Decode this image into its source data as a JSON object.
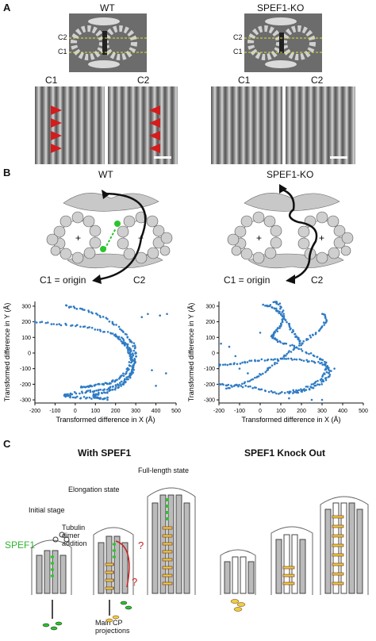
{
  "panels": {
    "A": {
      "letter": "A",
      "wt_title": "WT",
      "ko_title": "SPEF1-KO",
      "c1": "C1",
      "c2": "C2"
    },
    "B": {
      "letter": "B",
      "wt_title": "WT",
      "ko_title": "SPEF1-KO",
      "origin": "C1 = origin",
      "c2": "C2",
      "plus": "+"
    },
    "C": {
      "letter": "C",
      "with_title": "With SPEF1",
      "ko_title": "SPEF1 Knock Out",
      "full_length": "Full-length state",
      "elongation": "Elongation state",
      "initial": "Initial stage",
      "tubulin_1": "Tubulin",
      "tubulin_2": "dimer",
      "tubulin_3": "addition",
      "spef1": "SPEF1",
      "main_cp_1": "Main CP",
      "main_cp_2": "projections",
      "question": "?"
    }
  },
  "chart_data": [
    {
      "type": "scatter",
      "name_hint": "WT",
      "xlabel": "Transformed difference in X (Å)",
      "ylabel": "Transformed difference in Y (Å)",
      "xlim": [
        -200,
        500
      ],
      "ylim": [
        -320,
        330
      ],
      "xticks": [
        -200,
        -100,
        0,
        100,
        200,
        300,
        400,
        500
      ],
      "yticks": [
        -300,
        -200,
        -100,
        0,
        100,
        200,
        300
      ],
      "color": "#2e7bc4",
      "curves": [
        {
          "x": [
            -200,
            -120,
            -40,
            40,
            110,
            170,
            220,
            255,
            275,
            285,
            290,
            285,
            270,
            240,
            200,
            160,
            120,
            100,
            90,
            100,
            130,
            170
          ],
          "y": [
            200,
            190,
            180,
            170,
            150,
            130,
            100,
            60,
            20,
            -20,
            -70,
            -120,
            -160,
            -200,
            -230,
            -250,
            -260,
            -265,
            -270,
            -280,
            -290,
            -285
          ]
        },
        {
          "x": [
            -50,
            0,
            60,
            120,
            180,
            230,
            265,
            290,
            300,
            300,
            290,
            270,
            240,
            200,
            160,
            120,
            80,
            40,
            -20,
            -60,
            -30,
            20,
            80,
            140
          ],
          "y": [
            300,
            290,
            270,
            240,
            200,
            150,
            100,
            50,
            0,
            -50,
            -100,
            -140,
            -180,
            -210,
            -230,
            -240,
            -245,
            -250,
            -260,
            -270,
            -280,
            -285,
            -290,
            -290
          ]
        },
        {
          "x": [
            200,
            230,
            255,
            270,
            275,
            270,
            255,
            230,
            200,
            170,
            140,
            110,
            80,
            50,
            20
          ],
          "y": [
            120,
            80,
            40,
            0,
            -40,
            -80,
            -120,
            -150,
            -175,
            -190,
            -200,
            -205,
            -210,
            -215,
            -220
          ]
        }
      ],
      "outliers": {
        "x": [
          330,
          360,
          420,
          455,
          380,
          240,
          210,
          400,
          450,
          160
        ],
        "y": [
          230,
          250,
          240,
          250,
          -110,
          -190,
          -200,
          -210,
          -130,
          -300
        ]
      }
    },
    {
      "type": "scatter",
      "name_hint": "SPEF1-KO",
      "xlabel": "Transformed difference in X (Å)",
      "ylabel": "Transformed difference in Y (Å)",
      "xlim": [
        -200,
        500
      ],
      "ylim": [
        -320,
        330
      ],
      "xticks": [
        -200,
        -100,
        0,
        100,
        200,
        300,
        400,
        500
      ],
      "yticks": [
        -300,
        -200,
        -100,
        0,
        100,
        200,
        300
      ],
      "color": "#2e7bc4",
      "curves": [
        {
          "x": [
            20,
            50,
            80,
            100,
            110,
            100,
            80,
            60,
            60,
            80,
            120,
            180,
            240,
            290,
            320,
            320,
            300,
            260,
            200,
            140,
            80,
            20,
            -40,
            -100,
            -160,
            -200
          ],
          "y": [
            310,
            300,
            280,
            250,
            210,
            170,
            140,
            120,
            100,
            80,
            60,
            30,
            0,
            -30,
            -70,
            -110,
            -160,
            -200,
            -230,
            -250,
            -260,
            -240,
            -220,
            -210,
            -205,
            -200
          ]
        },
        {
          "x": [
            -200,
            -140,
            -80,
            -20,
            40,
            100,
            160,
            220,
            280,
            320,
            340,
            330,
            300,
            260,
            220,
            180,
            140
          ],
          "y": [
            -80,
            -70,
            -60,
            -50,
            -40,
            -40,
            -40,
            -50,
            -60,
            -80,
            -110,
            -150,
            -190,
            -220,
            -240,
            -250,
            -255
          ]
        },
        {
          "x": [
            -170,
            -100,
            -40,
            0,
            40,
            80,
            120,
            160,
            200,
            240,
            280,
            310,
            320,
            300
          ],
          "y": [
            -230,
            -200,
            -170,
            -140,
            -100,
            -60,
            -20,
            20,
            60,
            100,
            140,
            180,
            220,
            260
          ]
        },
        {
          "x": [
            60,
            90,
            110,
            130,
            150,
            170,
            190,
            200
          ],
          "y": [
            330,
            320,
            260,
            200,
            150,
            110,
            80,
            60
          ]
        }
      ],
      "outliers": {
        "x": [
          -190,
          -150,
          -120,
          -60,
          140,
          250,
          300,
          360,
          -100,
          0
        ],
        "y": [
          60,
          40,
          -20,
          -130,
          -290,
          -300,
          -300,
          -100,
          -100,
          130
        ]
      }
    }
  ]
}
